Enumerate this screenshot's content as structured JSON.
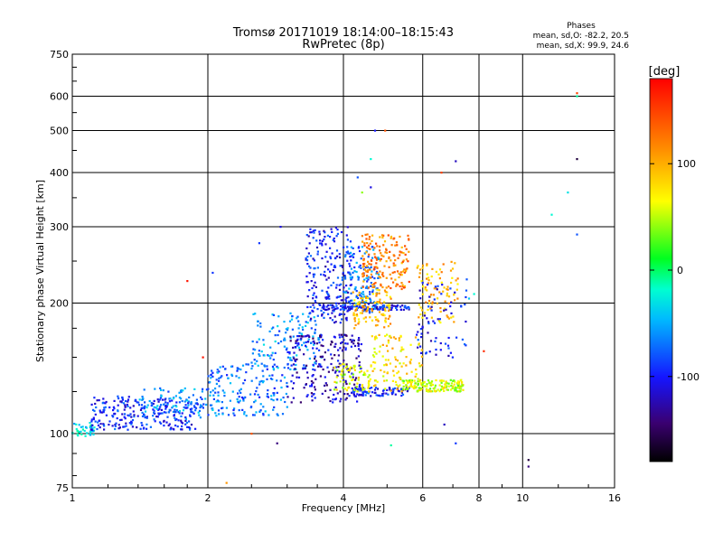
{
  "chart_data": {
    "type": "scatter",
    "title": "Tromsø 20171019 18:14:00–18:15:43",
    "subtitle": "RwPretec (8p)",
    "xlabel": "Frequency [MHz]",
    "ylabel": "Stationary phase Virtual Height [km]",
    "x_scale": "log",
    "y_scale": "log",
    "xlim": [
      1,
      16
    ],
    "ylim": [
      75,
      750
    ],
    "x_ticks": [
      1,
      2,
      4,
      6,
      8,
      10,
      16
    ],
    "y_ticks": [
      75,
      100,
      200,
      300,
      400,
      500,
      600,
      750
    ],
    "grid": true,
    "phase_stats": {
      "title": "Phases",
      "line_o": "mean, sd,O: -82.2, 20.5",
      "line_x": "mean, sd,X:  99.9, 24.6"
    },
    "colorbar": {
      "label": "[deg]",
      "range": [
        -180,
        180
      ],
      "ticks": [
        100,
        0,
        -100
      ]
    },
    "clusters": [
      {
        "x": [
          1.0,
          1.12
        ],
        "y": [
          98,
          106
        ],
        "phase": -30,
        "count": 40
      },
      {
        "x": [
          1.1,
          1.9
        ],
        "y": [
          102,
          122
        ],
        "phase": -95,
        "count": 260
      },
      {
        "x": [
          1.4,
          2.1
        ],
        "y": [
          108,
          128
        ],
        "phase": -60,
        "count": 90
      },
      {
        "x": [
          2.0,
          3.0
        ],
        "y": [
          110,
          145
        ],
        "phase": -70,
        "count": 170
      },
      {
        "x": [
          2.5,
          3.6
        ],
        "y": [
          140,
          190
        ],
        "phase": -60,
        "count": 140
      },
      {
        "x": [
          3.0,
          4.4
        ],
        "y": [
          118,
          170
        ],
        "phase": -120,
        "count": 230
      },
      {
        "x": [
          3.3,
          4.2
        ],
        "y": [
          180,
          300
        ],
        "phase": -100,
        "count": 210
      },
      {
        "x": [
          4.0,
          4.8
        ],
        "y": [
          190,
          270
        ],
        "phase": -70,
        "count": 140
      },
      {
        "x": [
          3.6,
          5.6
        ],
        "y": [
          193,
          198
        ],
        "phase": -100,
        "count": 110
      },
      {
        "x": [
          4.2,
          5.6
        ],
        "y": [
          122,
          128
        ],
        "phase": -95,
        "count": 80
      },
      {
        "x": [
          3.8,
          4.6
        ],
        "y": [
          125,
          145
        ],
        "phase": 60,
        "count": 70
      },
      {
        "x": [
          4.4,
          5.6
        ],
        "y": [
          215,
          290
        ],
        "phase": 120,
        "count": 170
      },
      {
        "x": [
          4.2,
          5.1
        ],
        "y": [
          175,
          215
        ],
        "phase": 95,
        "count": 100
      },
      {
        "x": [
          4.6,
          6.0
        ],
        "y": [
          125,
          170
        ],
        "phase": 80,
        "count": 110
      },
      {
        "x": [
          5.4,
          7.4
        ],
        "y": [
          125,
          133
        ],
        "phase": 55,
        "count": 160
      },
      {
        "x": [
          5.8,
          7.2
        ],
        "y": [
          180,
          250
        ],
        "phase": 95,
        "count": 90
      },
      {
        "x": [
          5.8,
          7.6
        ],
        "y": [
          150,
          230
        ],
        "phase": -100,
        "count": 70
      }
    ],
    "points": [
      {
        "x": 2.9,
        "y": 300,
        "phase": -110
      },
      {
        "x": 2.6,
        "y": 275,
        "phase": -90
      },
      {
        "x": 4.7,
        "y": 500,
        "phase": -100
      },
      {
        "x": 4.95,
        "y": 500,
        "phase": 140
      },
      {
        "x": 6.6,
        "y": 400,
        "phase": 150
      },
      {
        "x": 7.1,
        "y": 425,
        "phase": -120
      },
      {
        "x": 4.6,
        "y": 430,
        "phase": -20
      },
      {
        "x": 4.3,
        "y": 390,
        "phase": -80
      },
      {
        "x": 1.8,
        "y": 225,
        "phase": 170
      },
      {
        "x": 2.05,
        "y": 235,
        "phase": -90
      },
      {
        "x": 1.95,
        "y": 150,
        "phase": 170
      },
      {
        "x": 2.85,
        "y": 95,
        "phase": -140
      },
      {
        "x": 2.2,
        "y": 77,
        "phase": 110
      },
      {
        "x": 2.5,
        "y": 100,
        "phase": 140
      },
      {
        "x": 5.1,
        "y": 94,
        "phase": -10
      },
      {
        "x": 7.1,
        "y": 95,
        "phase": -90
      },
      {
        "x": 6.7,
        "y": 105,
        "phase": -120
      },
      {
        "x": 10.3,
        "y": 87,
        "phase": -160
      },
      {
        "x": 10.3,
        "y": 84,
        "phase": -140
      },
      {
        "x": 13.2,
        "y": 610,
        "phase": 150
      },
      {
        "x": 13.2,
        "y": 600,
        "phase": -10
      },
      {
        "x": 13.2,
        "y": 430,
        "phase": -160
      },
      {
        "x": 12.6,
        "y": 360,
        "phase": -30
      },
      {
        "x": 13.2,
        "y": 288,
        "phase": -80
      },
      {
        "x": 11.6,
        "y": 320,
        "phase": -20
      },
      {
        "x": 7.8,
        "y": 210,
        "phase": -20
      },
      {
        "x": 7.6,
        "y": 205,
        "phase": -40
      },
      {
        "x": 8.2,
        "y": 155,
        "phase": 160
      },
      {
        "x": 7.3,
        "y": 133,
        "phase": 60
      },
      {
        "x": 4.6,
        "y": 370,
        "phase": -110
      },
      {
        "x": 4.4,
        "y": 360,
        "phase": 40
      }
    ]
  }
}
